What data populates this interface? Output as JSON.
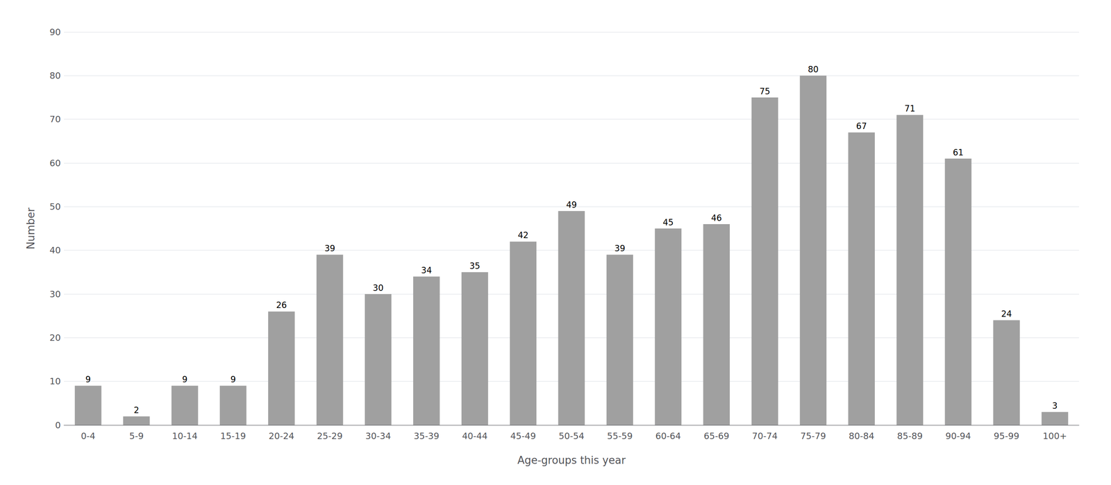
{
  "chart_data": {
    "type": "bar",
    "categories": [
      "0-4",
      "5-9",
      "10-14",
      "15-19",
      "20-24",
      "25-29",
      "30-34",
      "35-39",
      "40-44",
      "45-49",
      "50-54",
      "55-59",
      "60-64",
      "65-69",
      "70-74",
      "75-79",
      "80-84",
      "85-89",
      "90-94",
      "95-99",
      "100+"
    ],
    "values": [
      9,
      2,
      9,
      9,
      26,
      39,
      30,
      34,
      35,
      42,
      49,
      39,
      45,
      46,
      75,
      80,
      67,
      71,
      61,
      24,
      3
    ],
    "color": "#a0a0a0",
    "xlabel": "Age-groups this year",
    "ylabel": "Number",
    "ylim": [
      0,
      90
    ],
    "yticks": [
      0,
      10,
      20,
      30,
      40,
      50,
      60,
      70,
      80,
      90
    ],
    "grid": true,
    "data_labels": true
  }
}
